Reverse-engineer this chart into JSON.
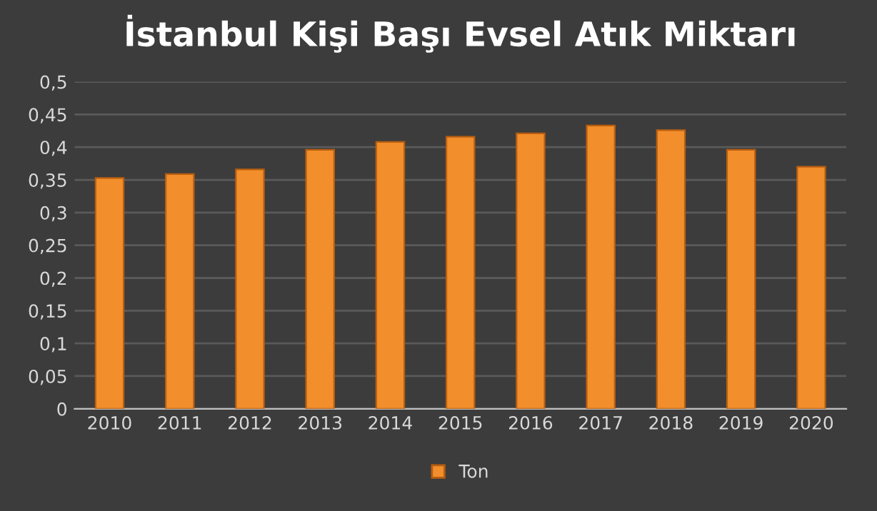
{
  "chart_data": {
    "type": "bar",
    "title": "İstanbul Kişi Başı Evsel Atık Miktarı",
    "categories": [
      "2010",
      "2011",
      "2012",
      "2013",
      "2014",
      "2015",
      "2016",
      "2017",
      "2018",
      "2019",
      "2020"
    ],
    "series": [
      {
        "name": "Ton",
        "color": "#f28e2b",
        "values": [
          0.353,
          0.359,
          0.366,
          0.396,
          0.408,
          0.416,
          0.421,
          0.433,
          0.426,
          0.396,
          0.37
        ]
      }
    ],
    "ylim": [
      0,
      0.5
    ],
    "yticks": [
      0,
      {
        "value": 0.05,
        "label": "0,05"
      },
      {
        "value": 0.1,
        "label": "0,1"
      },
      {
        "value": 0.15,
        "label": "0,15"
      },
      {
        "value": 0.2,
        "label": "0,2"
      },
      {
        "value": 0.25,
        "label": "0,25"
      },
      {
        "value": 0.3,
        "label": "0,3"
      },
      {
        "value": 0.35,
        "label": "0,35"
      },
      {
        "value": 0.4,
        "label": "0,4"
      },
      {
        "value": 0.45,
        "label": "0,45"
      },
      {
        "value": 0.5,
        "label": "0,5"
      }
    ],
    "grid": "y",
    "legend": "bottom"
  }
}
